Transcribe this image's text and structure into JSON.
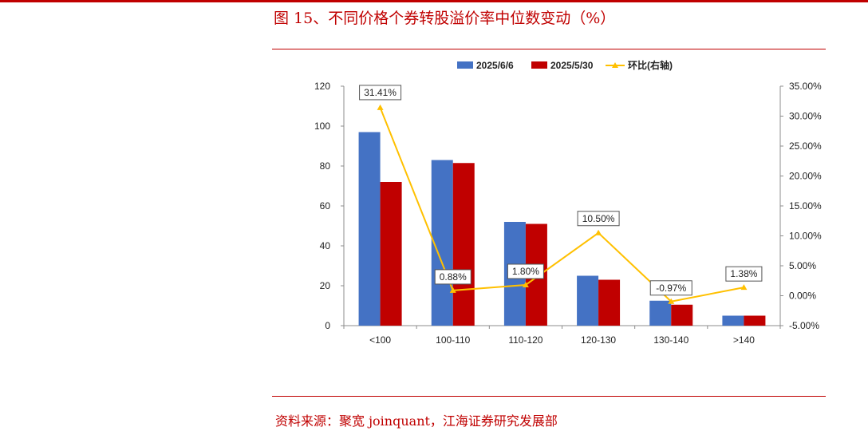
{
  "header": {
    "title": "图 15、不同价格个券转股溢价率中位数变动（%）"
  },
  "footer": {
    "source": "资料来源：聚宽 joinquant，江海证券研究发展部"
  },
  "chart_data": {
    "type": "bar",
    "categories": [
      "<100",
      "100-110",
      "110-120",
      "120-130",
      "130-140",
      ">140"
    ],
    "series": [
      {
        "name": "2025/6/6",
        "type": "bar",
        "axis": "left",
        "color": "#4472c4",
        "values": [
          97,
          83,
          52,
          25,
          12.5,
          5
        ]
      },
      {
        "name": "2025/5/30",
        "type": "bar",
        "axis": "left",
        "color": "#c00000",
        "values": [
          72,
          81.5,
          51,
          23,
          10.5,
          5
        ]
      },
      {
        "name": "环比(右轴)",
        "type": "line",
        "axis": "right",
        "color": "#ffc000",
        "values": [
          31.41,
          0.88,
          1.8,
          10.5,
          -0.97,
          1.38
        ],
        "labels": [
          "31.41%",
          "0.88%",
          "1.80%",
          "10.50%",
          "-0.97%",
          "1.38%"
        ]
      }
    ],
    "ylim": [
      0,
      120
    ],
    "yticks": [
      "0",
      "20",
      "40",
      "60",
      "80",
      "100",
      "120"
    ],
    "y2lim": [
      -5,
      35
    ],
    "y2ticks": [
      "-5.00%",
      "0.00%",
      "5.00%",
      "10.00%",
      "15.00%",
      "20.00%",
      "25.00%",
      "30.00%",
      "35.00%"
    ],
    "xlabel": "",
    "ylabel": "",
    "y2label": "",
    "grid": false,
    "legend": "top-center"
  }
}
